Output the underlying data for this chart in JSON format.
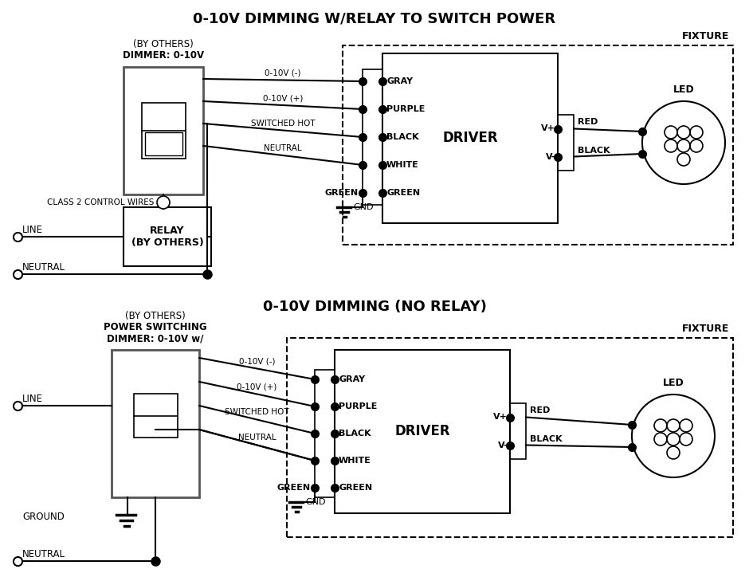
{
  "title1": "0-10V DIMMING W/RELAY TO SWITCH POWER",
  "title2": "0-10V DIMMING (NO RELAY)",
  "bg_color": "#ffffff",
  "line_color": "#000000",
  "wire_labels_top": [
    "0-10V (-)",
    "0-10V (+)",
    "SWITCHED HOT",
    "NEUTRAL"
  ],
  "wire_labels_bottom": [
    "0-10V (-)",
    "0-10V (+)",
    "SWITCHED HOT",
    "NEUTRAL"
  ],
  "driver_input_labels": [
    "GRAY",
    "PURPLE",
    "BLACK",
    "WHITE",
    "GREEN"
  ],
  "fixture_label": "FIXTURE",
  "driver_label": "DRIVER",
  "led_label": "LED",
  "relay_label": "RELAY\n(BY OTHERS)",
  "dimmer1_label1": "DIMMER: 0-10V",
  "dimmer1_label2": "(BY OTHERS)",
  "dimmer2_label1": "DIMMER: 0-10V w/",
  "dimmer2_label2": "POWER SWITCHING",
  "dimmer2_label3": "(BY OTHERS)",
  "gnd_label": "GND",
  "line_label": "LINE",
  "neutral_label": "NEUTRAL",
  "ground_label": "GROUND",
  "class2_label": "CLASS 2 CONTROL WIRES",
  "vplus_label": "V+",
  "vminus_label": "V-",
  "red_label": "RED",
  "black_label": "BLACK"
}
